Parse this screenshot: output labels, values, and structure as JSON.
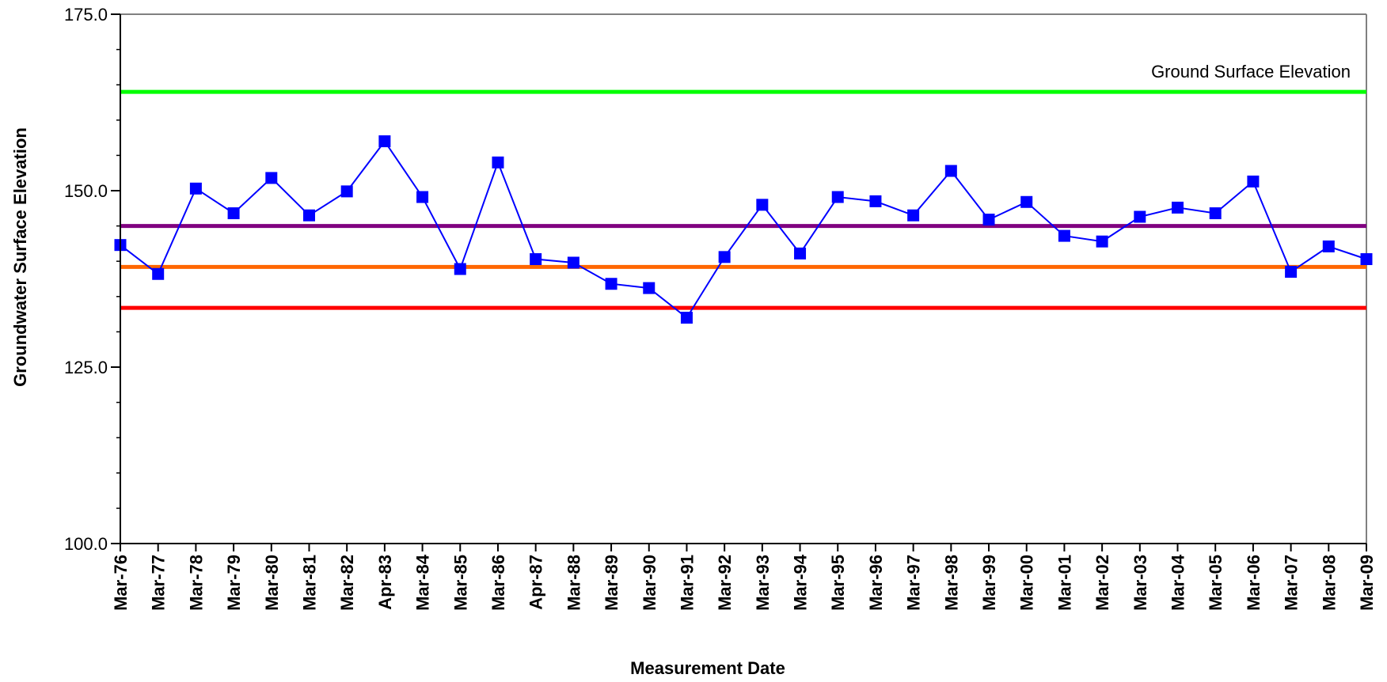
{
  "chart_data": {
    "type": "line",
    "title": "",
    "xlabel": "Measurement Date",
    "ylabel": "Groundwater Surface Elevation",
    "ylim": [
      100,
      175
    ],
    "y_major_ticks": [
      100,
      125,
      150,
      175
    ],
    "y_tick_labels": [
      "100.0",
      "125.0",
      "150.0",
      "175.0"
    ],
    "y_minor_step": 5,
    "grid": false,
    "legend": "none",
    "categories": [
      "Mar-76",
      "Mar-77",
      "Mar-78",
      "Mar-79",
      "Mar-80",
      "Mar-81",
      "Mar-82",
      "Apr-83",
      "Mar-84",
      "Mar-85",
      "Mar-86",
      "Apr-87",
      "Mar-88",
      "Mar-89",
      "Mar-90",
      "Mar-91",
      "Mar-92",
      "Mar-93",
      "Mar-94",
      "Mar-95",
      "Mar-96",
      "Mar-97",
      "Mar-98",
      "Mar-99",
      "Mar-00",
      "Mar-01",
      "Mar-02",
      "Mar-03",
      "Mar-04",
      "Mar-05",
      "Mar-06",
      "Mar-07",
      "Mar-08",
      "Mar-09"
    ],
    "series": [
      {
        "color": "#0000ff",
        "marker": "square",
        "values": [
          142.3,
          138.2,
          150.3,
          146.8,
          151.8,
          146.5,
          149.9,
          157.0,
          149.1,
          138.9,
          154.0,
          140.3,
          139.8,
          136.8,
          136.2,
          132.0,
          140.6,
          148.0,
          141.1,
          149.1,
          148.5,
          146.5,
          152.8,
          145.9,
          148.4,
          143.6,
          142.8,
          146.3,
          147.6,
          146.8,
          151.3,
          138.5,
          142.1,
          140.3
        ]
      }
    ],
    "reference_lines": [
      {
        "value": 164.0,
        "color": "#00ff00",
        "label": "Ground Surface Elevation"
      },
      {
        "value": 145.0,
        "color": "#800080",
        "label": ""
      },
      {
        "value": 139.2,
        "color": "#ff6600",
        "label": ""
      },
      {
        "value": 133.4,
        "color": "#ff0000",
        "label": ""
      }
    ]
  }
}
